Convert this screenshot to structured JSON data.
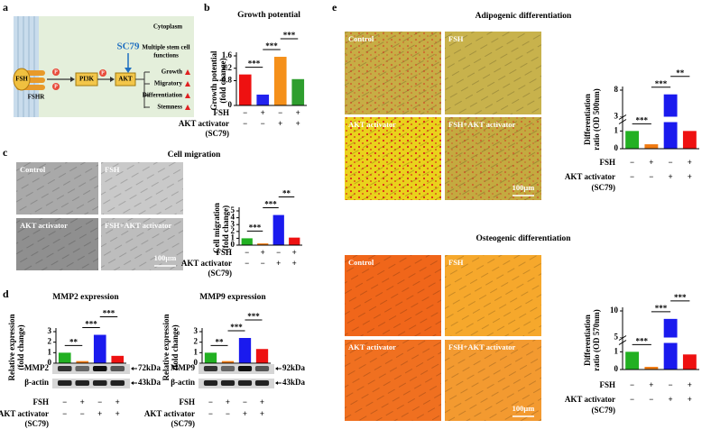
{
  "panel_labels": [
    "a",
    "b",
    "c",
    "d",
    "e"
  ],
  "diagram": {
    "region": "Cytoplasm",
    "drug": "SC79",
    "functions_title": [
      "Multiple stem cell",
      "functions"
    ],
    "functions": [
      "Growth",
      "Migratory",
      "Differentiation",
      "Stemness"
    ],
    "ligand": "FSH",
    "receptor": "FSHR",
    "kinases": [
      "PI3K",
      "AKT"
    ],
    "phospho": "P"
  },
  "micrographs": {
    "labels": [
      "Control",
      "FSH",
      "AKT activator",
      "FSH+AKT activator"
    ],
    "scale_bar": "100μm"
  },
  "blots": [
    {
      "target": "MMP2",
      "target_size": "72kDa",
      "loading": "β-actin",
      "loading_size": "43kDa"
    },
    {
      "target": "MMP9",
      "target_size": "92kDa",
      "loading": "β-actin",
      "loading_size": "43kDa"
    }
  ],
  "chart_data": [
    {
      "type": "bar",
      "title": "Growth potential",
      "ylabel": [
        "Growth potential",
        "(fold change)"
      ],
      "colors": [
        "#ee1111",
        "#2222ee",
        "#f5901a",
        "#2e9e2e"
      ],
      "values": [
        1.0,
        0.35,
        1.57,
        0.85
      ],
      "ylim": [
        0,
        1.6
      ],
      "yticks": [
        0,
        0.8,
        1.2,
        1.6
      ],
      "annotations": [
        {
          "text": "***",
          "pair": [
            0,
            1
          ]
        },
        {
          "text": "***",
          "pair": [
            1,
            2
          ]
        },
        {
          "text": "***",
          "pair": [
            2,
            3
          ]
        }
      ],
      "conditions": [
        {
          "label": [
            "FSH"
          ],
          "signs": [
            "−",
            "+",
            "−",
            "+"
          ]
        },
        {
          "label": [
            "AKT activator",
            "(SC79)"
          ],
          "signs": [
            "−",
            "−",
            "+",
            "+"
          ]
        }
      ]
    },
    {
      "type": "bar",
      "title": "Cell migration",
      "ylabel": [
        "Cell migration",
        "(fold change)"
      ],
      "colors": [
        "#22b022",
        "#f07a10",
        "#1a1aee",
        "#ee1111"
      ],
      "values": [
        1.0,
        0.25,
        4.4,
        1.1
      ],
      "ylim": [
        0,
        5
      ],
      "yticks": [
        0,
        1,
        2,
        3,
        4,
        5
      ],
      "annotations": [
        {
          "text": "***",
          "pair": [
            0,
            1
          ]
        },
        {
          "text": "***",
          "pair": [
            1,
            2
          ]
        },
        {
          "text": "**",
          "pair": [
            2,
            3
          ]
        }
      ],
      "conditions": [
        {
          "label": [
            "FSH"
          ],
          "signs": [
            "−",
            "+",
            "−",
            "+"
          ]
        },
        {
          "label": [
            "AKT activator",
            "(SC79)"
          ],
          "signs": [
            "−",
            "−",
            "+",
            "+"
          ]
        }
      ]
    },
    {
      "type": "bar",
      "title": "MMP2 expression",
      "ylabel": [
        "Relative expression",
        "(fold change)"
      ],
      "colors": [
        "#22b022",
        "#f07a10",
        "#1a1aee",
        "#ee1111"
      ],
      "values": [
        1.0,
        0.2,
        2.7,
        0.7
      ],
      "ylim": [
        0,
        3
      ],
      "yticks": [
        0,
        1,
        2,
        3
      ],
      "annotations": [
        {
          "text": "**",
          "pair": [
            0,
            1
          ]
        },
        {
          "text": "***",
          "pair": [
            1,
            2
          ]
        },
        {
          "text": "***",
          "pair": [
            2,
            3
          ]
        }
      ],
      "conditions": [
        {
          "label": [
            "FSH"
          ],
          "signs": [
            "−",
            "+",
            "−",
            "+"
          ]
        },
        {
          "label": [
            "AKT activator",
            "(SC79)"
          ],
          "signs": [
            "−",
            "−",
            "+",
            "+"
          ]
        }
      ]
    },
    {
      "type": "bar",
      "title": "MMP9 expression",
      "ylabel": [
        "Relative expression",
        "(fold change)"
      ],
      "colors": [
        "#22b022",
        "#f07a10",
        "#1a1aee",
        "#ee1111"
      ],
      "values": [
        1.0,
        0.2,
        2.4,
        1.35
      ],
      "ylim": [
        0,
        3
      ],
      "yticks": [
        0,
        1,
        2,
        3
      ],
      "annotations": [
        {
          "text": "**",
          "pair": [
            0,
            1
          ]
        },
        {
          "text": "***",
          "pair": [
            1,
            2
          ]
        },
        {
          "text": "***",
          "pair": [
            2,
            3
          ]
        }
      ],
      "conditions": [
        {
          "label": [
            "FSH"
          ],
          "signs": [
            "−",
            "+",
            "−",
            "+"
          ]
        },
        {
          "label": [
            "AKT activator",
            "(SC79)"
          ],
          "signs": [
            "−",
            "−",
            "+",
            "+"
          ]
        }
      ]
    },
    {
      "type": "bar",
      "title": "Adipogenic differentiation",
      "ylabel": [
        "Differentiation",
        "ratio (OD 500nm)"
      ],
      "colors": [
        "#22b022",
        "#f07a10",
        "#1a1aee",
        "#ee1111"
      ],
      "values": [
        1.0,
        0.25,
        7.2,
        1.0
      ],
      "ylim": [
        0,
        8
      ],
      "yticks": [
        0,
        1,
        3,
        8
      ],
      "ybreak": [
        1.5,
        3
      ],
      "annotations": [
        {
          "text": "***",
          "pair": [
            0,
            1
          ]
        },
        {
          "text": "***",
          "pair": [
            1,
            2
          ]
        },
        {
          "text": "**",
          "pair": [
            2,
            3
          ]
        }
      ],
      "conditions": [
        {
          "label": [
            "FSH"
          ],
          "signs": [
            "−",
            "+",
            "−",
            "+"
          ]
        },
        {
          "label": [
            "AKT activator",
            "(SC79)"
          ],
          "signs": [
            "−",
            "−",
            "+",
            "+"
          ]
        }
      ]
    },
    {
      "type": "bar",
      "title": "Osteogenic differentiation",
      "ylabel": [
        "Differentiation",
        "ratio (OD 570nm)"
      ],
      "colors": [
        "#22b022",
        "#f07a10",
        "#1a1aee",
        "#ee1111"
      ],
      "values": [
        1.0,
        0.15,
        8.5,
        0.85
      ],
      "ylim": [
        0,
        10
      ],
      "yticks": [
        0,
        1,
        5,
        10
      ],
      "ybreak": [
        1.5,
        5
      ],
      "annotations": [
        {
          "text": "***",
          "pair": [
            0,
            1
          ]
        },
        {
          "text": "***",
          "pair": [
            1,
            2
          ]
        },
        {
          "text": "***",
          "pair": [
            2,
            3
          ]
        }
      ],
      "conditions": [
        {
          "label": [
            "FSH"
          ],
          "signs": [
            "−",
            "+",
            "−",
            "+"
          ]
        },
        {
          "label": [
            "AKT activator",
            "(SC79)"
          ],
          "signs": [
            "−",
            "−",
            "+",
            "+"
          ]
        }
      ]
    }
  ]
}
